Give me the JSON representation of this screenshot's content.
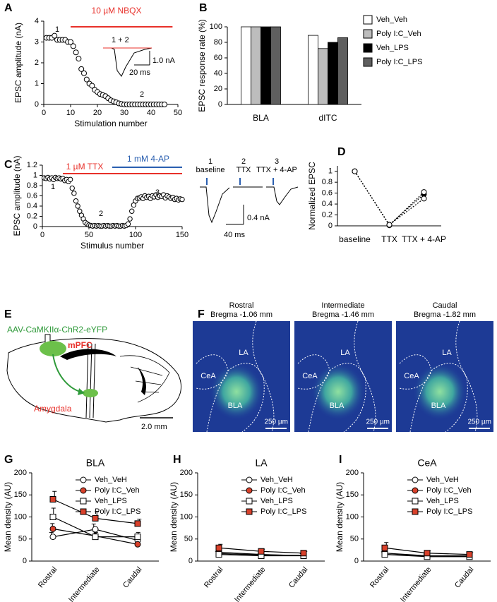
{
  "chart_data": [
    {
      "panel_label": "A",
      "type": "scatter",
      "xlabel": "Stimulation number",
      "ylabel": "EPSC amplitude (nA)",
      "x": [
        1,
        2,
        3,
        4,
        5,
        6,
        7,
        8,
        9,
        10,
        11,
        12,
        13,
        14,
        15,
        16,
        17,
        18,
        19,
        20,
        21,
        22,
        23,
        24,
        25,
        26,
        27,
        28,
        29,
        30,
        31,
        32,
        33,
        34,
        35,
        36,
        37,
        38,
        39,
        40,
        41,
        42,
        43,
        44,
        45
      ],
      "values": [
        3.2,
        3.2,
        3.2,
        3.3,
        3.1,
        3.1,
        3.1,
        3.1,
        3.0,
        3.0,
        2.8,
        2.5,
        2.2,
        1.7,
        1.5,
        1.2,
        1.0,
        0.9,
        0.7,
        0.6,
        0.5,
        0.45,
        0.4,
        0.3,
        0.2,
        0.15,
        0.1,
        0.05,
        0.02,
        0,
        0,
        0,
        0,
        0,
        0,
        0,
        0,
        0,
        0,
        0,
        0,
        0,
        0,
        0,
        0
      ],
      "xlim": [
        0,
        50
      ],
      "xticks": [
        0,
        10,
        20,
        30,
        40,
        50
      ],
      "ylim": [
        0,
        4
      ],
      "yticks": [
        0,
        1,
        2,
        3,
        4
      ],
      "color": "#000000",
      "drug_bars": [
        {
          "label": "10 µM NBQX",
          "start": 10,
          "end": 48,
          "color": "#e8302a"
        }
      ],
      "annotations": [
        "1",
        "2"
      ],
      "inset": {
        "label": "1 + 2",
        "scale_y": "1.0 nA",
        "scale_x": "20 ms"
      }
    },
    {
      "panel_label": "B",
      "type": "bar",
      "ylabel": "EPSC response rate (%)",
      "categories": [
        "BLA",
        "dITC"
      ],
      "series": [
        {
          "name": "Veh_Veh",
          "color": "#ffffff",
          "values": [
            100,
            89
          ]
        },
        {
          "name": "Poly I:C_Veh",
          "color": "#bdbdbd",
          "values": [
            100,
            72
          ]
        },
        {
          "name": "Veh_LPS",
          "color": "#000000",
          "values": [
            100,
            80
          ]
        },
        {
          "name": "Poly I:C_LPS",
          "color": "#5f5f5f",
          "values": [
            100,
            86
          ]
        }
      ],
      "ylim": [
        0,
        100
      ],
      "yticks": [
        0,
        20,
        40,
        60,
        80,
        100
      ],
      "legend": "right"
    },
    {
      "panel_label": "C",
      "type": "scatter",
      "xlabel": "Stimulus number",
      "ylabel": "EPSC amplitude (nA)",
      "x": [
        2,
        4,
        6,
        8,
        10,
        12,
        14,
        16,
        18,
        20,
        22,
        24,
        26,
        28,
        30,
        32,
        34,
        36,
        38,
        40,
        42,
        44,
        46,
        48,
        50,
        52,
        54,
        56,
        58,
        60,
        62,
        64,
        66,
        68,
        70,
        72,
        74,
        76,
        78,
        80,
        82,
        84,
        86,
        88,
        90,
        92,
        94,
        96,
        98,
        100,
        102,
        104,
        106,
        108,
        110,
        112,
        114,
        116,
        118,
        120,
        122,
        124,
        126,
        128,
        130,
        132,
        134,
        136,
        138,
        140,
        142,
        144,
        146,
        148,
        150
      ],
      "values": [
        0.95,
        0.94,
        0.96,
        0.93,
        0.95,
        0.92,
        0.96,
        0.94,
        0.95,
        0.93,
        0.94,
        0.9,
        0.92,
        0.88,
        0.92,
        0.75,
        0.65,
        0.5,
        0.4,
        0.3,
        0.22,
        0.15,
        0.08,
        0.05,
        0.03,
        0.02,
        0.01,
        0.02,
        0.01,
        0.02,
        0.01,
        0.01,
        0.02,
        0.01,
        0.02,
        0.01,
        0.01,
        0.02,
        0.01,
        0.02,
        0.01,
        0.01,
        0.02,
        0.01,
        0.02,
        0.05,
        0.15,
        0.3,
        0.42,
        0.5,
        0.55,
        0.56,
        0.58,
        0.55,
        0.6,
        0.57,
        0.59,
        0.55,
        0.6,
        0.58,
        0.62,
        0.57,
        0.6,
        0.59,
        0.62,
        0.56,
        0.6,
        0.58,
        0.55,
        0.57,
        0.53,
        0.55,
        0.52,
        0.54,
        0.53
      ],
      "xlim": [
        0,
        150
      ],
      "xticks": [
        0,
        50,
        100,
        150
      ],
      "ylim": [
        0,
        1.2
      ],
      "yticks": [
        0,
        0.2,
        0.4,
        0.6,
        0.8,
        1,
        1.2
      ],
      "color": "#000000",
      "drug_bars": [
        {
          "label": "1 µM TTX",
          "start": 22,
          "end": 150,
          "color": "#e8302a"
        },
        {
          "label": "1 mM 4-AP",
          "start": 75,
          "end": 150,
          "color": "#2a5fb0"
        }
      ],
      "annotations": [
        "1",
        "2",
        "3"
      ],
      "traces": [
        {
          "number": "1",
          "label": "baseline"
        },
        {
          "number": "2",
          "label": "TTX"
        },
        {
          "number": "3",
          "label": "TTX + 4-AP"
        }
      ],
      "scale_y": "0.4 nA",
      "scale_x": "40 ms"
    },
    {
      "panel_label": "D",
      "type": "line",
      "ylabel": "Normalized EPSC",
      "categories": [
        "baseline",
        "TTX",
        "TTX + 4-AP"
      ],
      "series": [
        {
          "color": "#000000",
          "values": [
            1,
            0.02,
            0.58
          ]
        },
        {
          "color": "#ffffff",
          "values": [
            1,
            0.01,
            0.62
          ]
        },
        {
          "color": "#ffffff",
          "values": [
            1,
            0.02,
            0.5
          ]
        }
      ],
      "ylim": [
        0,
        1.1
      ],
      "yticks": [
        0,
        0.2,
        0.4,
        0.6,
        0.8,
        1
      ],
      "dashed": true
    },
    {
      "panel_label": "G",
      "type": "line",
      "title": "BLA",
      "ylabel": "Mean density (AU)",
      "categories": [
        "Rostral",
        "Intermediate",
        "Caudal"
      ],
      "series": [
        {
          "name": "Veh_VeH",
          "marker": "circle",
          "color": "#ffffff",
          "values": [
            55,
            72,
            47
          ],
          "errors": [
            10,
            12,
            8
          ]
        },
        {
          "name": "Poly I:C_Veh",
          "marker": "circle",
          "color": "#d9412b",
          "values": [
            73,
            57,
            38
          ],
          "errors": [
            12,
            10,
            5
          ]
        },
        {
          "name": "Veh_LPS",
          "marker": "square",
          "color": "#ffffff",
          "values": [
            100,
            55,
            55
          ],
          "errors": [
            20,
            10,
            10
          ]
        },
        {
          "name": "Poly I:C_LPS",
          "marker": "square",
          "color": "#d9412b",
          "values": [
            140,
            97,
            85
          ],
          "errors": [
            18,
            15,
            10
          ]
        }
      ],
      "ylim": [
        0,
        200
      ],
      "yticks": [
        0,
        50,
        100,
        150,
        200
      ]
    },
    {
      "panel_label": "H",
      "type": "line",
      "title": "LA",
      "ylabel": "Mean density (AU)",
      "categories": [
        "Rostral",
        "Intermediate",
        "Caudal"
      ],
      "series": [
        {
          "name": "Veh_VeH",
          "marker": "circle",
          "color": "#ffffff",
          "values": [
            17,
            14,
            13
          ],
          "errors": [
            5,
            4,
            4
          ]
        },
        {
          "name": "Poly I:C_Veh",
          "marker": "circle",
          "color": "#d9412b",
          "values": [
            20,
            15,
            12
          ],
          "errors": [
            5,
            4,
            3
          ]
        },
        {
          "name": "Veh_LPS",
          "marker": "square",
          "color": "#ffffff",
          "values": [
            15,
            12,
            12
          ],
          "errors": [
            4,
            3,
            3
          ]
        },
        {
          "name": "Poly I:C_LPS",
          "marker": "square",
          "color": "#d9412b",
          "values": [
            30,
            22,
            18
          ],
          "errors": [
            8,
            5,
            4
          ]
        }
      ],
      "ylim": [
        0,
        200
      ],
      "yticks": [
        0,
        50,
        100,
        150,
        200
      ]
    },
    {
      "panel_label": "I",
      "type": "line",
      "title": "CeA",
      "ylabel": "Mean density (AU)",
      "categories": [
        "Rostral",
        "Intermediate",
        "Caudal"
      ],
      "series": [
        {
          "name": "Veh_VeH",
          "marker": "circle",
          "color": "#ffffff",
          "values": [
            15,
            12,
            12
          ],
          "errors": [
            6,
            4,
            3
          ]
        },
        {
          "name": "Poly I:C_Veh",
          "marker": "circle",
          "color": "#d9412b",
          "values": [
            18,
            12,
            11
          ],
          "errors": [
            5,
            4,
            3
          ]
        },
        {
          "name": "Veh_LPS",
          "marker": "square",
          "color": "#ffffff",
          "values": [
            15,
            10,
            10
          ],
          "errors": [
            4,
            3,
            3
          ]
        },
        {
          "name": "Poly I:C_LPS",
          "marker": "square",
          "color": "#d9412b",
          "values": [
            30,
            18,
            15
          ],
          "errors": [
            12,
            5,
            4
          ]
        }
      ],
      "ylim": [
        0,
        200
      ],
      "yticks": [
        0,
        50,
        100,
        150,
        200
      ]
    }
  ],
  "diagram": {
    "panel_label": "E",
    "virus": "AAV-CaMKIIα-ChR2-eYFP",
    "source": "mPFC",
    "target": "Amygdala",
    "scale_bar": "2.0 mm"
  },
  "histology": {
    "panel_label": "F",
    "sections": [
      {
        "title": "Rostral",
        "bregma": "Bregma -1.06 mm"
      },
      {
        "title": "Intermediate",
        "bregma": "Bregma -1.46 mm"
      },
      {
        "title": "Caudal",
        "bregma": "Bregma -1.82 mm"
      }
    ],
    "regions": [
      "CeA",
      "LA",
      "BLA"
    ],
    "scale_bar": "250 µm"
  }
}
